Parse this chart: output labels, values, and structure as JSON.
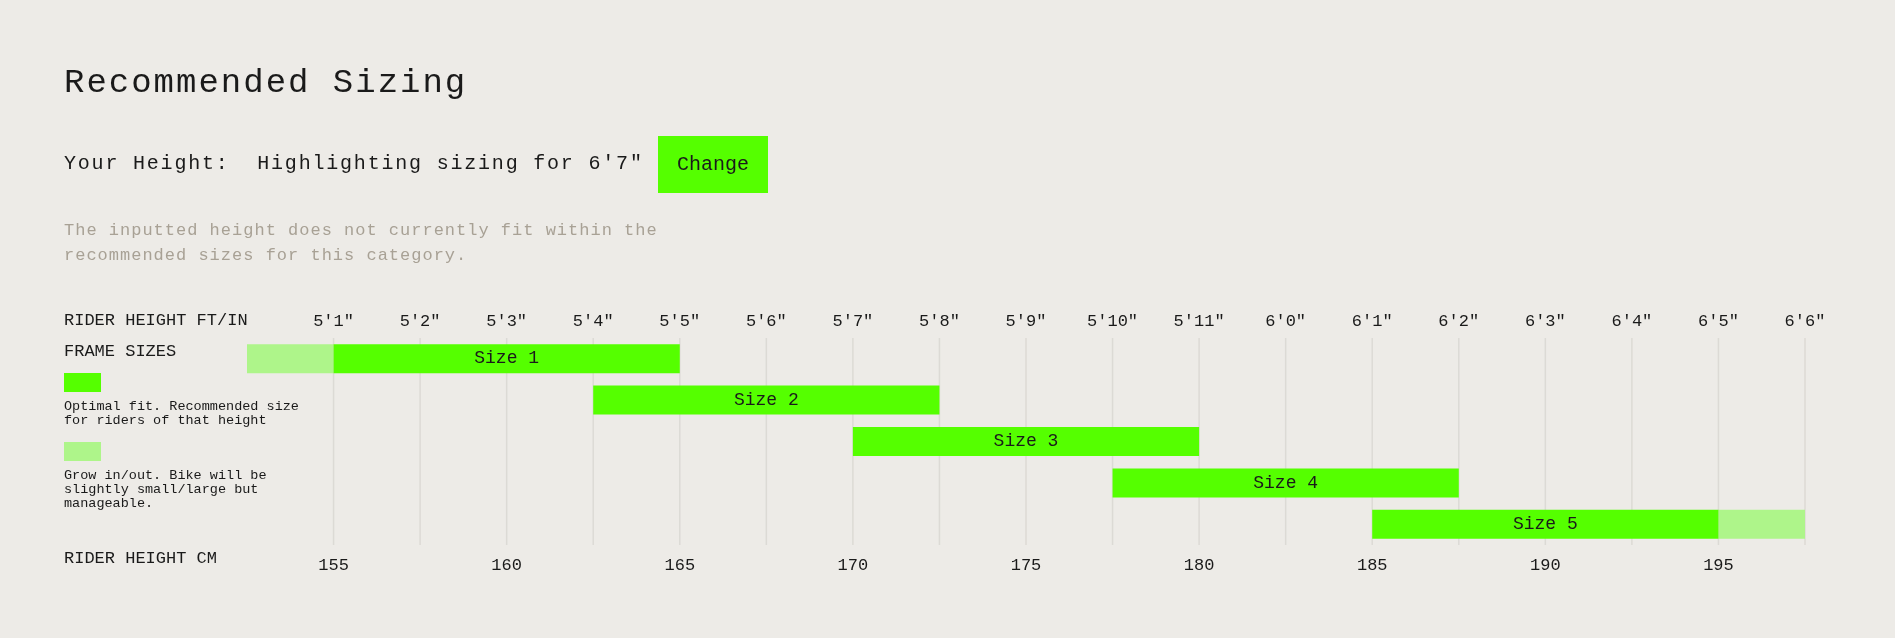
{
  "chart_data": {
    "type": "bar",
    "orientation": "horizontal",
    "title": "Recommended Sizing",
    "subtitle": "Your Height:  Highlighting sizing for 6'7\"",
    "annotations": [
      "Change",
      "The inputted height does not currently fit within the recommended sizes for this category.",
      "5'1\"",
      "5'2\"",
      "5'3\"",
      "5'4\"",
      "5'5\"",
      "5'6\"",
      "5'7\"",
      "5'8\"",
      "5'9\"",
      "5'10\"",
      "5'11\"",
      "6'0\"",
      "6'1\"",
      "6'2\"",
      "6'3\"",
      "6'4\"",
      "6'5\"",
      "6'6\""
    ],
    "x2label": "RIDER HEIGHT FT/IN",
    "ylabel": "FRAME SIZES",
    "xlabel": "RIDER HEIGHT CM",
    "categories": [
      "Size 1",
      "Size 2",
      "Size 3",
      "Size 4",
      "Size 5"
    ],
    "series": [
      {
        "name": "Optimal fit. Recommended size for riders of that height",
        "color": "#55ff00",
        "values": [
          10,
          10,
          10,
          10,
          10
        ],
        "base": [
          155,
          162.5,
          170,
          177.5,
          185
        ]
      },
      {
        "name": "Grow in/out. Bike will be slightly small/large but manageable.",
        "color": "#aef58a",
        "values": [
          2.5,
          null,
          null,
          null,
          2.5
        ],
        "base": [
          152.5,
          null,
          null,
          null,
          195
        ]
      }
    ],
    "xlim": [
      152.5,
      197.5
    ],
    "xticks": [
      155,
      {
        "value": 157.5,
        "label": null
      },
      160,
      {
        "value": 162.5,
        "label": null
      },
      165,
      {
        "value": 167.5,
        "label": null
      },
      170,
      {
        "value": 172.5,
        "label": null
      },
      175,
      {
        "value": 177.5,
        "label": null
      },
      180,
      {
        "value": 182.5,
        "label": null
      },
      185,
      {
        "value": 187.5,
        "label": null
      },
      190,
      {
        "value": 192.5,
        "label": null
      },
      195,
      {
        "value": 197.5,
        "label": null
      }
    ],
    "grid": "x",
    "legend": "left",
    "tick_labels": "x"
  }
}
